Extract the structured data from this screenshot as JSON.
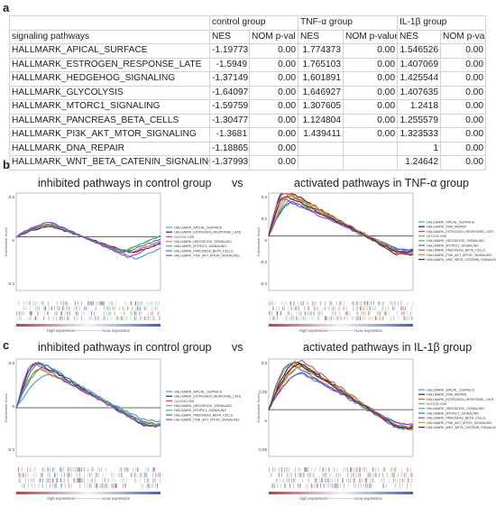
{
  "panels": [
    "a",
    "b",
    "c"
  ],
  "table": {
    "group_headers": [
      "signaling pathways",
      "control group",
      "TNF-α group",
      "IL-1β group"
    ],
    "sub_headers": [
      "NES",
      "NOM p-val",
      "NES",
      "NOM p-value",
      "NES",
      "NOM p-va"
    ],
    "rows": [
      [
        "HALLMARK_APICAL_SURFACE",
        "-1.19773",
        "0.00",
        "1.774373",
        "0.00",
        "1.546526",
        "0.00"
      ],
      [
        "HALLMARK_ESTROGEN_RESPONSE_LATE",
        "-1.5949",
        "0.00",
        "1.765103",
        "0.00",
        "1.407069",
        "0.00"
      ],
      [
        "HALLMARK_HEDGEHOG_SIGNALING",
        "-1.37149",
        "0.00",
        "1.601891",
        "0.00",
        "1.425544",
        "0.00"
      ],
      [
        "HALLMARK_GLYCOLYSIS",
        "-1.64097",
        "0.00",
        "1.646927",
        "0.00",
        "1.407635",
        "0.00"
      ],
      [
        "HALLMARK_MTORC1_SIGNALING",
        "-1.59759",
        "0.00",
        "1.307605",
        "0.00",
        "1.2418",
        "0.00"
      ],
      [
        "HALLMARK_PANCREAS_BETA_CELLS",
        "-1.30477",
        "0.00",
        "1.124804",
        "0.00",
        "1.255579",
        "0.00"
      ],
      [
        "HALLMARK_PI3K_AKT_MTOR_SIGNALING",
        "-1.3681",
        "0.00",
        "1.439411",
        "0.00",
        "1.323533",
        "0.00"
      ],
      [
        "HALLMARK_DNA_REPAIR",
        "-1.18865",
        "0.00",
        "",
        "",
        "1",
        "0.00"
      ],
      [
        "HALLMARK_WNT_BETA_CATENIN_SIGNALING",
        "-1.37993",
        "0.00",
        "",
        "",
        "1.24642",
        "0.00"
      ]
    ]
  },
  "row_b": {
    "left_title": "inhibited pathways in control group",
    "vs": "vs",
    "right_title": "activated pathways in TNF-α group"
  },
  "row_c": {
    "left_title": "inhibited pathways in control group",
    "vs": "vs",
    "right_title": "activated pathways in IL-1β group"
  },
  "plot_common": {
    "ylabel": "Enrichment Score",
    "xlabel": "High expression<-------------------->Low expression"
  },
  "legends": {
    "b_left": [
      "HALLMARK_APICAL_SURFACE",
      "HALLMARK_ESTROGEN_RESPONSE_LATE",
      "GLYCOLYSIS",
      "HALLMARK_HEDGEHOG_SIGNALING",
      "HALLMARK_MTORC1_SIGNALING",
      "HALLMARK_PANCREAS_BETA_CELLS",
      "HALLMARK_PI3K_AKT_MTOR_SIGNALING"
    ],
    "b_right": [
      "HALLMARK_APICAL_SURFACE",
      "HALLMARK_DNA_REPAIR",
      "HALLMARK_ESTROGEN_RESPONSE_LATE",
      "GLYCOLYSIS",
      "HALLMARK_HEDGEHOG_SIGNALING",
      "HALLMARK_MTORC1_SIGNALING",
      "HALLMARK_PANCREAS_BETA_CELLS",
      "HALLMARK_PI3K_AKT_MTOR_SIGNALING",
      "HALLMARK_WNT_BETA_CATENIN_SIGNALING"
    ],
    "c_left": [
      "HALLMARK_APICAL_SURFACE",
      "HALLMARK_ESTROGEN_RESPONSE_LATE",
      "GLYCOLYSIS",
      "HALLMARK_HEDGEHOG_SIGNALING",
      "HALLMARK_MTORC1_SIGNALING",
      "HALLMARK_PANCREAS_BETA_CELLS",
      "HALLMARK_PI3K_AKT_MTOR_SIGNALING"
    ],
    "c_right": [
      "HALLMARK_APICAL_SURFACE",
      "HALLMARK_DNA_REPAIR",
      "HALLMARK_ESTROGEN_RESPONSE_LATE",
      "GLYCOLYSIS",
      "HALLMARK_HEDGEHOG_SIGNALING",
      "HALLMARK_MTORC1_SIGNALING",
      "HALLMARK_PANCREAS_BETA_CELLS",
      "HALLMARK_PI3K_AKT_MTOR_SIGNALING",
      "HALLMARK_WNT_BETA_CATENIN_SIGNALING"
    ]
  },
  "yticks": {
    "b_left": [
      "0.3",
      "0",
      "-0.3"
    ],
    "b_right": [
      "0.4",
      "0.2",
      "0",
      "-0.2",
      "-0.4"
    ],
    "c_left": [
      "0.3",
      "0",
      "-0.3"
    ],
    "c_right": [
      "0.5",
      "0.25",
      "0",
      "-0.25"
    ]
  },
  "series_colors": [
    "#3f9de0",
    "#2c2c2c",
    "#e04a55",
    "#b39c3b",
    "#49b068",
    "#3b6fd6",
    "#9a3fc4",
    "#e08a2a",
    "#6e1f2f"
  ]
}
